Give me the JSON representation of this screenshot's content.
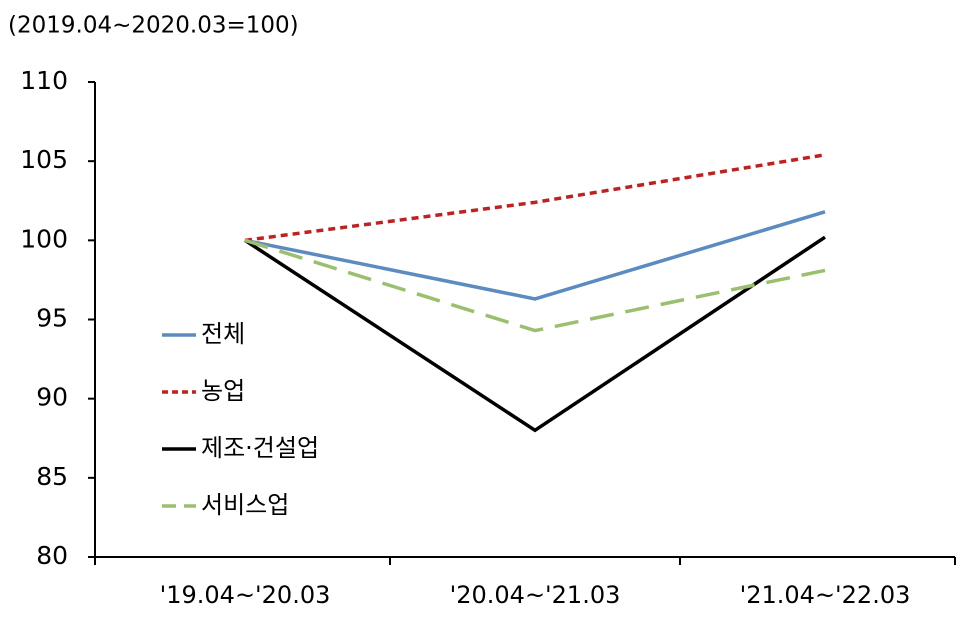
{
  "chart_data": {
    "type": "line",
    "subtitle": "(2019.04~2020.03=100)",
    "categories": [
      "'19.04~'20.03",
      "'20.04~'21.03",
      "'21.04~'22.03"
    ],
    "series": [
      {
        "name": "전체",
        "color": "#5b8bbf",
        "dash": "solid",
        "values": [
          100,
          96.3,
          101.8
        ]
      },
      {
        "name": "농업",
        "color": "#c0201f",
        "dash": "dotted",
        "values": [
          100,
          102.4,
          105.4
        ]
      },
      {
        "name": "제조·건설업",
        "color": "#000000",
        "dash": "solid",
        "values": [
          100,
          88,
          100.2
        ]
      },
      {
        "name": "서비스업",
        "color": "#9bbf6e",
        "dash": "dashed",
        "values": [
          100,
          94.3,
          98.1
        ]
      }
    ],
    "ylim": [
      80,
      110
    ],
    "yticks": [
      80,
      85,
      90,
      95,
      100,
      105,
      110
    ],
    "grid": false,
    "legend": "left"
  }
}
